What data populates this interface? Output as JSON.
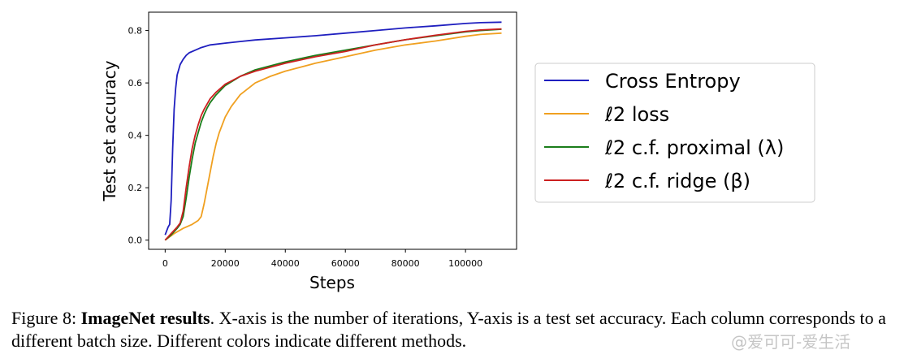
{
  "chart_data": {
    "type": "line",
    "xlabel": "Steps",
    "ylabel": "Test set accuracy",
    "xlim": [
      -5500,
      117000
    ],
    "ylim": [
      -0.035,
      0.87
    ],
    "xticks": [
      0,
      20000,
      40000,
      60000,
      80000,
      100000
    ],
    "xtick_labels": [
      "0",
      "20000",
      "40000",
      "60000",
      "80000",
      "100000"
    ],
    "yticks": [
      0.0,
      0.2,
      0.4,
      0.6,
      0.8
    ],
    "ytick_labels": [
      "0.0",
      "0.2",
      "0.4",
      "0.6",
      "0.8"
    ],
    "grid": false,
    "legend_position": "right, outside plot",
    "series": [
      {
        "name": "Cross Entropy",
        "color": "#1f1fbf",
        "x": [
          0,
          1000,
          1500,
          2000,
          2500,
          3000,
          3500,
          4000,
          5000,
          6000,
          7000,
          8000,
          10000,
          12000,
          15000,
          20000,
          25000,
          30000,
          40000,
          50000,
          60000,
          70000,
          80000,
          90000,
          100000,
          105000,
          112000
        ],
        "y": [
          0.02,
          0.05,
          0.06,
          0.15,
          0.35,
          0.5,
          0.58,
          0.63,
          0.67,
          0.69,
          0.705,
          0.715,
          0.725,
          0.735,
          0.745,
          0.752,
          0.758,
          0.764,
          0.772,
          0.78,
          0.79,
          0.8,
          0.81,
          0.818,
          0.827,
          0.83,
          0.832
        ]
      },
      {
        "name": "ℓ2 loss",
        "color": "#f0a020",
        "x": [
          0,
          3000,
          6000,
          9000,
          11000,
          12000,
          13000,
          14000,
          15000,
          16000,
          17000,
          18000,
          19000,
          20000,
          22000,
          25000,
          30000,
          35000,
          40000,
          50000,
          60000,
          70000,
          80000,
          90000,
          100000,
          105000,
          112000
        ],
        "y": [
          0.0,
          0.025,
          0.045,
          0.06,
          0.075,
          0.09,
          0.14,
          0.2,
          0.26,
          0.32,
          0.37,
          0.41,
          0.44,
          0.47,
          0.51,
          0.555,
          0.6,
          0.625,
          0.645,
          0.675,
          0.7,
          0.725,
          0.745,
          0.76,
          0.778,
          0.785,
          0.79
        ]
      },
      {
        "name": "ℓ2 c.f. proximal (λ)",
        "color": "#1a7d1a",
        "x": [
          0,
          2000,
          4000,
          5000,
          6000,
          7000,
          8000,
          9000,
          10000,
          11000,
          12000,
          13000,
          14000,
          15000,
          17000,
          20000,
          25000,
          30000,
          40000,
          50000,
          60000,
          70000,
          80000,
          90000,
          100000,
          105000,
          112000
        ],
        "y": [
          0.0,
          0.02,
          0.045,
          0.06,
          0.09,
          0.16,
          0.24,
          0.31,
          0.37,
          0.41,
          0.45,
          0.48,
          0.505,
          0.525,
          0.555,
          0.59,
          0.625,
          0.65,
          0.68,
          0.705,
          0.725,
          0.745,
          0.765,
          0.78,
          0.795,
          0.8,
          0.805
        ]
      },
      {
        "name": "ℓ2 c.f. ridge (β)",
        "color": "#cc2020",
        "x": [
          0,
          2000,
          4000,
          5000,
          6000,
          7000,
          8000,
          9000,
          10000,
          11000,
          12000,
          13000,
          14000,
          15000,
          17000,
          20000,
          25000,
          30000,
          40000,
          50000,
          60000,
          70000,
          80000,
          90000,
          100000,
          105000,
          112000
        ],
        "y": [
          0.0,
          0.025,
          0.05,
          0.065,
          0.11,
          0.2,
          0.28,
          0.35,
          0.4,
          0.44,
          0.475,
          0.5,
          0.52,
          0.54,
          0.565,
          0.595,
          0.625,
          0.645,
          0.675,
          0.7,
          0.72,
          0.745,
          0.765,
          0.782,
          0.797,
          0.802,
          0.806
        ]
      }
    ]
  },
  "legend": {
    "items": [
      {
        "label": "Cross Entropy",
        "color": "#1f1fbf"
      },
      {
        "label": "ℓ2 loss",
        "color": "#f0a020"
      },
      {
        "label": "ℓ2 c.f. proximal (λ)",
        "color": "#1a7d1a"
      },
      {
        "label": "ℓ2 c.f. ridge (β)",
        "color": "#cc2020"
      }
    ]
  },
  "caption": {
    "label": "Figure 8: ",
    "bold": "ImageNet results",
    "text": ". X-axis is the number of iterations, Y-axis is a test set accuracy. Each column corresponds to a different batch size. Different colors indicate different methods."
  },
  "watermark": "@爱可可-爱生活"
}
